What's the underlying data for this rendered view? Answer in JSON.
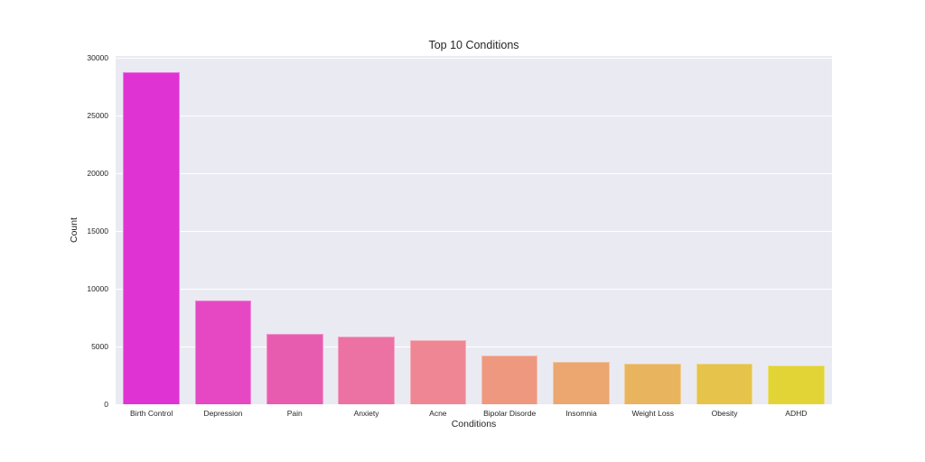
{
  "chart_data": {
    "type": "bar",
    "title": "Top 10 Conditions",
    "xlabel": "Conditions",
    "ylabel": "Count",
    "categories": [
      "Birth Control",
      "Depression",
      "Pain",
      "Anxiety",
      "Acne",
      "Bipolar Disorde",
      "Insomnia",
      "Weight Loss",
      "Obesity",
      "ADHD"
    ],
    "values": [
      28750,
      9000,
      6100,
      5850,
      5550,
      4200,
      3650,
      3550,
      3500,
      3350
    ],
    "colors": [
      "#e033d4",
      "#e648c4",
      "#e85cb0",
      "#eb72a2",
      "#ee8694",
      "#ef9880",
      "#eca670",
      "#e9b45e",
      "#e6c34a",
      "#e2d437"
    ],
    "ylim": [
      0,
      30000
    ],
    "yticks": [
      0,
      5000,
      10000,
      15000,
      20000,
      25000,
      30000
    ],
    "grid": true,
    "legend": null,
    "background": "#eaeaf2"
  }
}
